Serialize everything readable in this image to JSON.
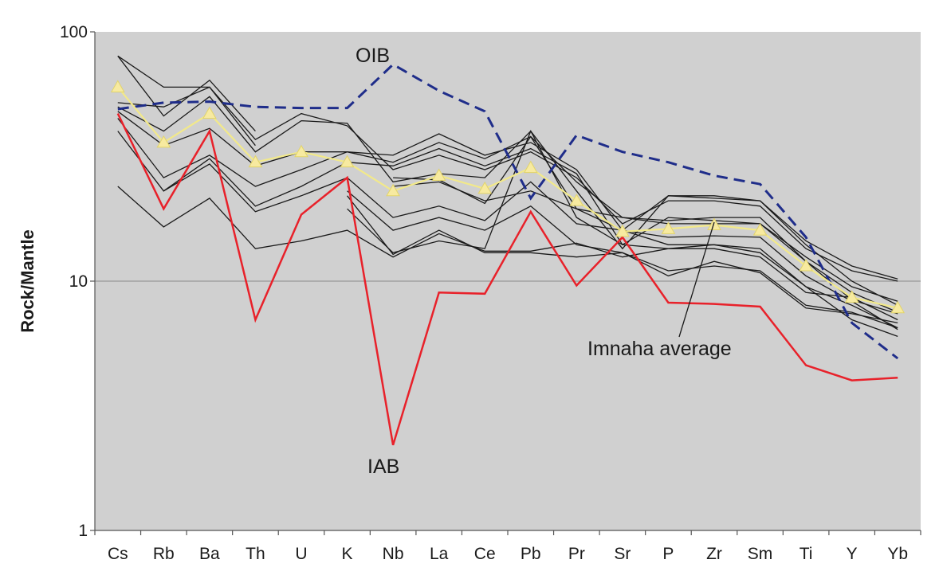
{
  "chart_data": {
    "type": "line",
    "ylabel": "Rock/Mantle",
    "yscale": "log",
    "ylim": [
      1,
      100
    ],
    "yticks": [
      "1",
      "10",
      "100"
    ],
    "grid": "horizontal at decades",
    "background_color": "#d0d0d0",
    "categories": [
      "Cs",
      "Rb",
      "Ba",
      "Th",
      "U",
      "K",
      "Nb",
      "La",
      "Ce",
      "Pb",
      "Pr",
      "Sr",
      "P",
      "Zr",
      "Sm",
      "Ti",
      "Y",
      "Yb"
    ],
    "annotations": {
      "oib": "OIB",
      "iab": "IAB",
      "imnaha": "Imnaha average"
    },
    "reference_series": [
      {
        "name": "OIB",
        "color": "#1f2d8a",
        "style": "dashed",
        "values": [
          49,
          52,
          52.5,
          50,
          49.5,
          49.5,
          74,
          58,
          48,
          21.5,
          38.5,
          33,
          30,
          26.5,
          24.5,
          15,
          6.8,
          4.9
        ]
      },
      {
        "name": "IAB",
        "color": "#e8212a",
        "style": "solid",
        "values": [
          47,
          19.5,
          40,
          7,
          18.5,
          26,
          2.2,
          9,
          8.9,
          19,
          9.6,
          15,
          8.2,
          8.1,
          7.9,
          4.6,
          4.0,
          4.1
        ]
      },
      {
        "name": "Imnaha average",
        "color": "#f2e98a",
        "marker_color": "#f7eaa0",
        "style": "solid-triangles",
        "values": [
          60,
          36,
          47,
          30,
          33,
          30,
          23,
          26.5,
          23.5,
          28.5,
          21,
          15.8,
          16.2,
          16.8,
          16,
          11.5,
          8.6,
          7.8
        ]
      }
    ],
    "sample_series": [
      {
        "color": "#1a1a1a",
        "values": [
          80,
          60,
          60,
          35,
          null,
          null,
          null,
          null,
          null,
          null,
          null,
          null,
          null,
          null,
          null,
          null,
          null,
          null
        ]
      },
      {
        "color": "#1a1a1a",
        "values": [
          80,
          46,
          64,
          40,
          null,
          null,
          null,
          null,
          null,
          null,
          null,
          null,
          null,
          null,
          null,
          null,
          null,
          null
        ]
      },
      {
        "color": "#1a1a1a",
        "values": [
          52,
          50,
          60,
          37,
          47,
          42,
          28,
          32,
          28,
          33,
          26,
          17,
          21,
          21,
          20,
          13.5,
          11,
          10
        ]
      },
      {
        "color": "#1a1a1a",
        "values": [
          50,
          40,
          55,
          33,
          44,
          43,
          25,
          27,
          26,
          40,
          23,
          13.5,
          22,
          21.5,
          21,
          14.5,
          11.5,
          10.2
        ]
      },
      {
        "color": "#1a1a1a",
        "values": [
          48,
          35,
          41,
          29,
          33,
          33,
          30,
          36,
          31,
          38,
          25,
          18,
          17,
          17,
          17,
          12.5,
          9.5,
          8.3
        ]
      },
      {
        "color": "#1a1a1a",
        "values": [
          45,
          26,
          32,
          24,
          28,
          33,
          32,
          39,
          32,
          36,
          28,
          16,
          22,
          22,
          21,
          14,
          10,
          8
        ]
      },
      {
        "color": "#1a1a1a",
        "values": [
          40,
          23,
          31,
          20,
          24,
          30,
          29,
          34,
          29,
          34,
          27,
          14,
          18,
          17.5,
          17,
          12,
          9,
          7.5
        ]
      },
      {
        "color": "#1a1a1a",
        "values": [
          24,
          16.5,
          21.5,
          13.5,
          14.5,
          16,
          12.5,
          15.5,
          13.2,
          13.2,
          14.2,
          12.5,
          13.5,
          13.5,
          12.5,
          9,
          8.6,
          7
        ]
      },
      {
        "color": "#1a1a1a",
        "values": [
          null,
          23,
          29.5,
          19,
          22,
          26,
          18,
          20,
          17.5,
          25,
          17,
          16,
          14,
          14,
          13.5,
          9.5,
          8,
          6.5
        ]
      },
      {
        "color": "#1a1a1a",
        "values": [
          null,
          null,
          null,
          null,
          null,
          23,
          16,
          18,
          16,
          20,
          14,
          13,
          11,
          11.5,
          11,
          8,
          7.5,
          6.5
        ]
      },
      {
        "color": "#1a1a1a",
        "values": [
          null,
          null,
          null,
          null,
          null,
          19.5,
          13,
          14.5,
          13.5,
          40,
          18,
          14,
          13.5,
          14,
          13,
          9.5,
          7,
          6
        ]
      },
      {
        "color": "#1a1a1a",
        "values": [
          null,
          null,
          null,
          null,
          null,
          22,
          12.8,
          16,
          13,
          13,
          12.5,
          13,
          10.5,
          12,
          10.8,
          7.8,
          7.4,
          6.8
        ]
      },
      {
        "color": "#1a1a1a",
        "values": [
          null,
          null,
          null,
          null,
          null,
          null,
          26,
          25.5,
          20.5,
          38,
          19.5,
          16,
          15,
          15.2,
          15,
          10.5,
          8.3,
          6.4
        ]
      },
      {
        "color": "#1a1a1a",
        "values": [
          null,
          null,
          null,
          null,
          null,
          null,
          24,
          25,
          21,
          23,
          19.5,
          18,
          17.5,
          18,
          18,
          12,
          8.4,
          7.4
        ]
      }
    ]
  }
}
